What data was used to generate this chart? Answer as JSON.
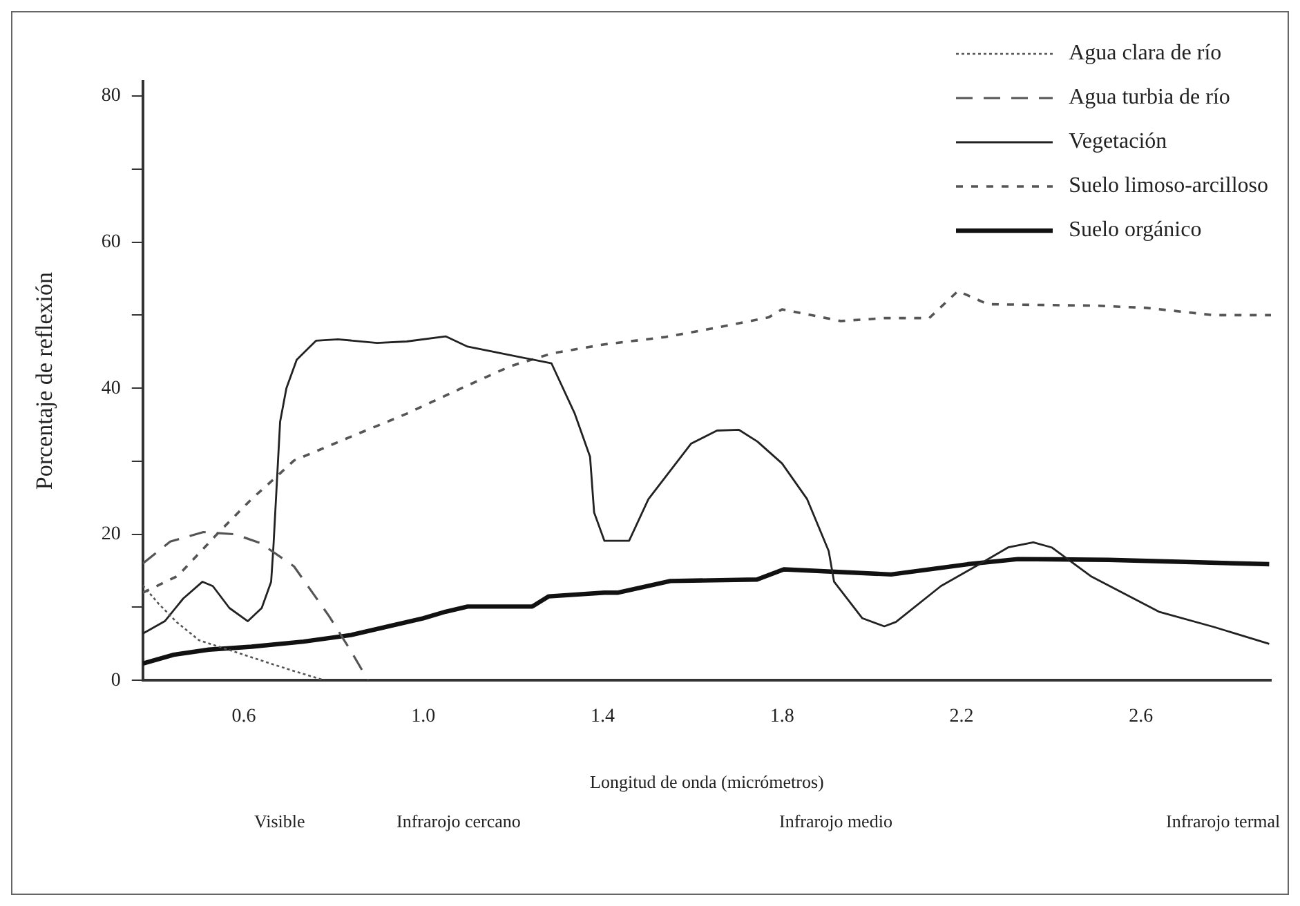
{
  "chart_data": {
    "type": "line",
    "xlabel": "Longitud de onda (micrómetros)",
    "ylabel": "Porcentaje de reflexión",
    "xlim": [
      0.375,
      2.89
    ],
    "xticks": [
      0.6,
      {
        "value": 1,
        "label": "1.0"
      },
      1.4,
      1.8,
      2.2,
      2.6
    ],
    "ylim": [
      0,
      82
    ],
    "yticks": [
      0,
      {
        "value": 10,
        "label": null
      },
      20,
      {
        "value": 30,
        "label": null
      },
      40,
      {
        "value": 50,
        "label": null
      },
      60,
      {
        "value": 70,
        "label": null
      },
      80
    ],
    "grid": false,
    "legend": "top right",
    "marker": "none",
    "annotations": [
      "Visible",
      "Infrarojo cercano",
      "Infrarojo medio",
      "Infrarojo termal"
    ],
    "series": [
      {
        "name": "Agua clara de río",
        "color": "#555555",
        "line_style": "dotted",
        "x": [
          0.375,
          0.41,
          0.45,
          0.5,
          0.55,
          0.6,
          0.7,
          0.78
        ],
        "values": [
          13,
          10.5,
          8,
          5.5,
          4.5,
          3.5,
          1.5,
          0
        ]
      },
      {
        "name": "Agua turbia de río",
        "color": "#555555",
        "line_style": "dashed",
        "x": [
          0.375,
          0.436,
          0.51,
          0.58,
          0.637,
          0.712,
          0.79,
          0.839,
          0.877
        ],
        "values": [
          16,
          19,
          20.3,
          20,
          18.8,
          15.6,
          8.8,
          4,
          0
        ]
      },
      {
        "name": "Vegetación",
        "color": "#222222",
        "line_style": "solid",
        "x": [
          0.375,
          0.424,
          0.465,
          0.508,
          0.531,
          0.568,
          0.609,
          0.64,
          0.661,
          0.666,
          0.681,
          0.695,
          0.718,
          0.761,
          0.81,
          0.897,
          0.963,
          1.05,
          1.099,
          1.286,
          1.338,
          1.372,
          1.381,
          1.404,
          1.459,
          1.502,
          1.597,
          1.655,
          1.704,
          1.745,
          1.8,
          1.856,
          1.904,
          1.916,
          1.979,
          2.028,
          2.054,
          2.154,
          2.24,
          2.304,
          2.36,
          2.401,
          2.49,
          2.64,
          2.763,
          2.886
        ],
        "values": [
          6.4,
          8.1,
          11.2,
          13.5,
          12.9,
          9.9,
          8.1,
          9.9,
          13.5,
          18.2,
          35.4,
          40,
          43.9,
          46.5,
          46.7,
          46.2,
          46.4,
          47.1,
          45.7,
          43.4,
          36.5,
          30.6,
          23,
          19.1,
          19.1,
          24.8,
          32.4,
          34.2,
          34.3,
          32.7,
          29.7,
          24.8,
          17.7,
          13.5,
          8.5,
          7.4,
          8,
          12.9,
          15.9,
          18.2,
          18.9,
          18.2,
          14.2,
          9.4,
          7.3,
          5
        ]
      },
      {
        "name": "Suelo limoso-arcilloso",
        "color": "#555555",
        "line_style": "dashed",
        "x": [
          0.375,
          0.453,
          0.54,
          0.617,
          0.675,
          0.712,
          0.848,
          0.963,
          1.078,
          1.194,
          1.289,
          1.404,
          1.539,
          1.655,
          1.77,
          1.8,
          1.931,
          2.028,
          2.128,
          2.192,
          2.259,
          2.5,
          2.613,
          2.763,
          2.89
        ],
        "values": [
          12,
          14.3,
          20,
          24.8,
          28,
          30.1,
          33.6,
          36.5,
          39.8,
          43,
          44.8,
          46,
          47,
          48.3,
          49.7,
          50.8,
          49.2,
          49.6,
          49.6,
          53.3,
          51.5,
          51.3,
          51,
          50,
          50
        ]
      },
      {
        "name": "Suelo orgánico",
        "color": "#111111",
        "line_style": "solid",
        "x": [
          0.375,
          0.444,
          0.522,
          0.617,
          0.733,
          0.839,
          1.0,
          1.05,
          1.099,
          1.243,
          1.28,
          1.404,
          1.433,
          1.551,
          1.744,
          1.804,
          2.043,
          2.214,
          2.326,
          2.528,
          2.886
        ],
        "values": [
          2.3,
          3.5,
          4.2,
          4.6,
          5.3,
          6.2,
          8.5,
          9.4,
          10.1,
          10.1,
          11.5,
          12,
          12,
          13.6,
          13.8,
          15.2,
          14.5,
          15.9,
          16.6,
          16.5,
          15.9
        ]
      }
    ]
  }
}
